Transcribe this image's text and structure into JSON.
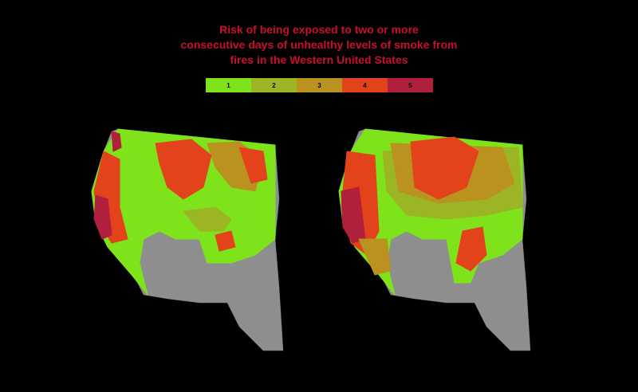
{
  "title": {
    "lines": [
      "Risk of being exposed to two or more",
      "consecutive days of unhealthy levels of smoke from",
      "fires in the Western United States"
    ]
  },
  "legend": {
    "items": [
      {
        "label": "1",
        "color": "#7ee31b"
      },
      {
        "label": "2",
        "color": "#9bb525"
      },
      {
        "label": "3",
        "color": "#b9921f"
      },
      {
        "label": "4",
        "color": "#e2431b"
      },
      {
        "label": "5",
        "color": "#b01f3c"
      }
    ]
  }
}
